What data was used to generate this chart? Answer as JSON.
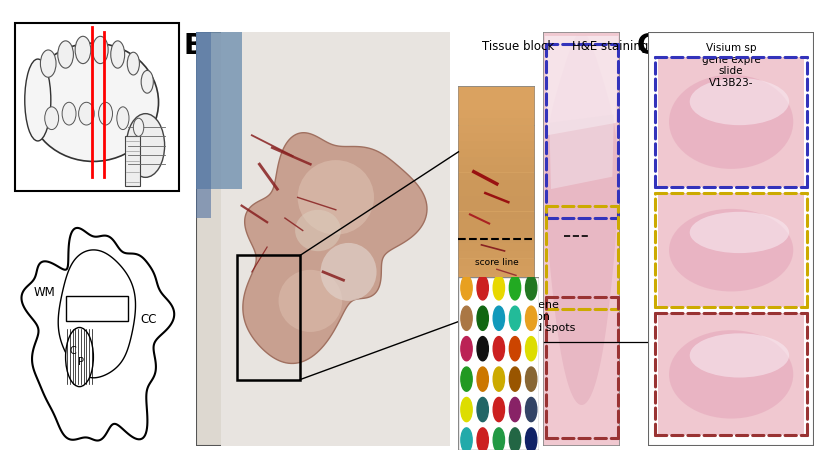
{
  "bg_color": "#ffffff",
  "panel_B_label": "B",
  "panel_C_label": "C",
  "tissue_block_label": "Tissue block",
  "he_staining_label": "H&E staining",
  "score_line_label": "score line",
  "visium_spots_label": "Visium gene\nexpression\nbarcoded spots",
  "visium_slide_label": "Visium sp\ngene expre\nslide\nV13B23-",
  "wm_label": "WM",
  "c_label": "C",
  "p_label": "P",
  "cc_label": "CC",
  "blue_border": "#3333bb",
  "yellow_border": "#ccaa00",
  "darkred_border": "#993333",
  "spot_colors_rows": [
    [
      "#e8a020",
      "#cc2020",
      "#e8d800",
      "#22aa22",
      "#227722"
    ],
    [
      "#aa7744",
      "#116611",
      "#1199bb",
      "#22bb99",
      "#e8a020"
    ],
    [
      "#bb2255",
      "#111111",
      "#cc2020",
      "#cc4400",
      "#dddd00"
    ],
    [
      "#229922",
      "#cc7700",
      "#ccaa00",
      "#995500",
      "#886633"
    ],
    [
      "#dddd00",
      "#226666",
      "#cc2020",
      "#882266",
      "#334466"
    ],
    [
      "#22aaaa",
      "#cc2020",
      "#229944",
      "#226644",
      "#112266"
    ]
  ],
  "tissue_bg": "#e8e0d8",
  "tissue_color": "#c8a898",
  "tissue_block_bg": "#d4a060",
  "he_bg": "#f0c8d0",
  "he_tissue": "#e8b0c0"
}
